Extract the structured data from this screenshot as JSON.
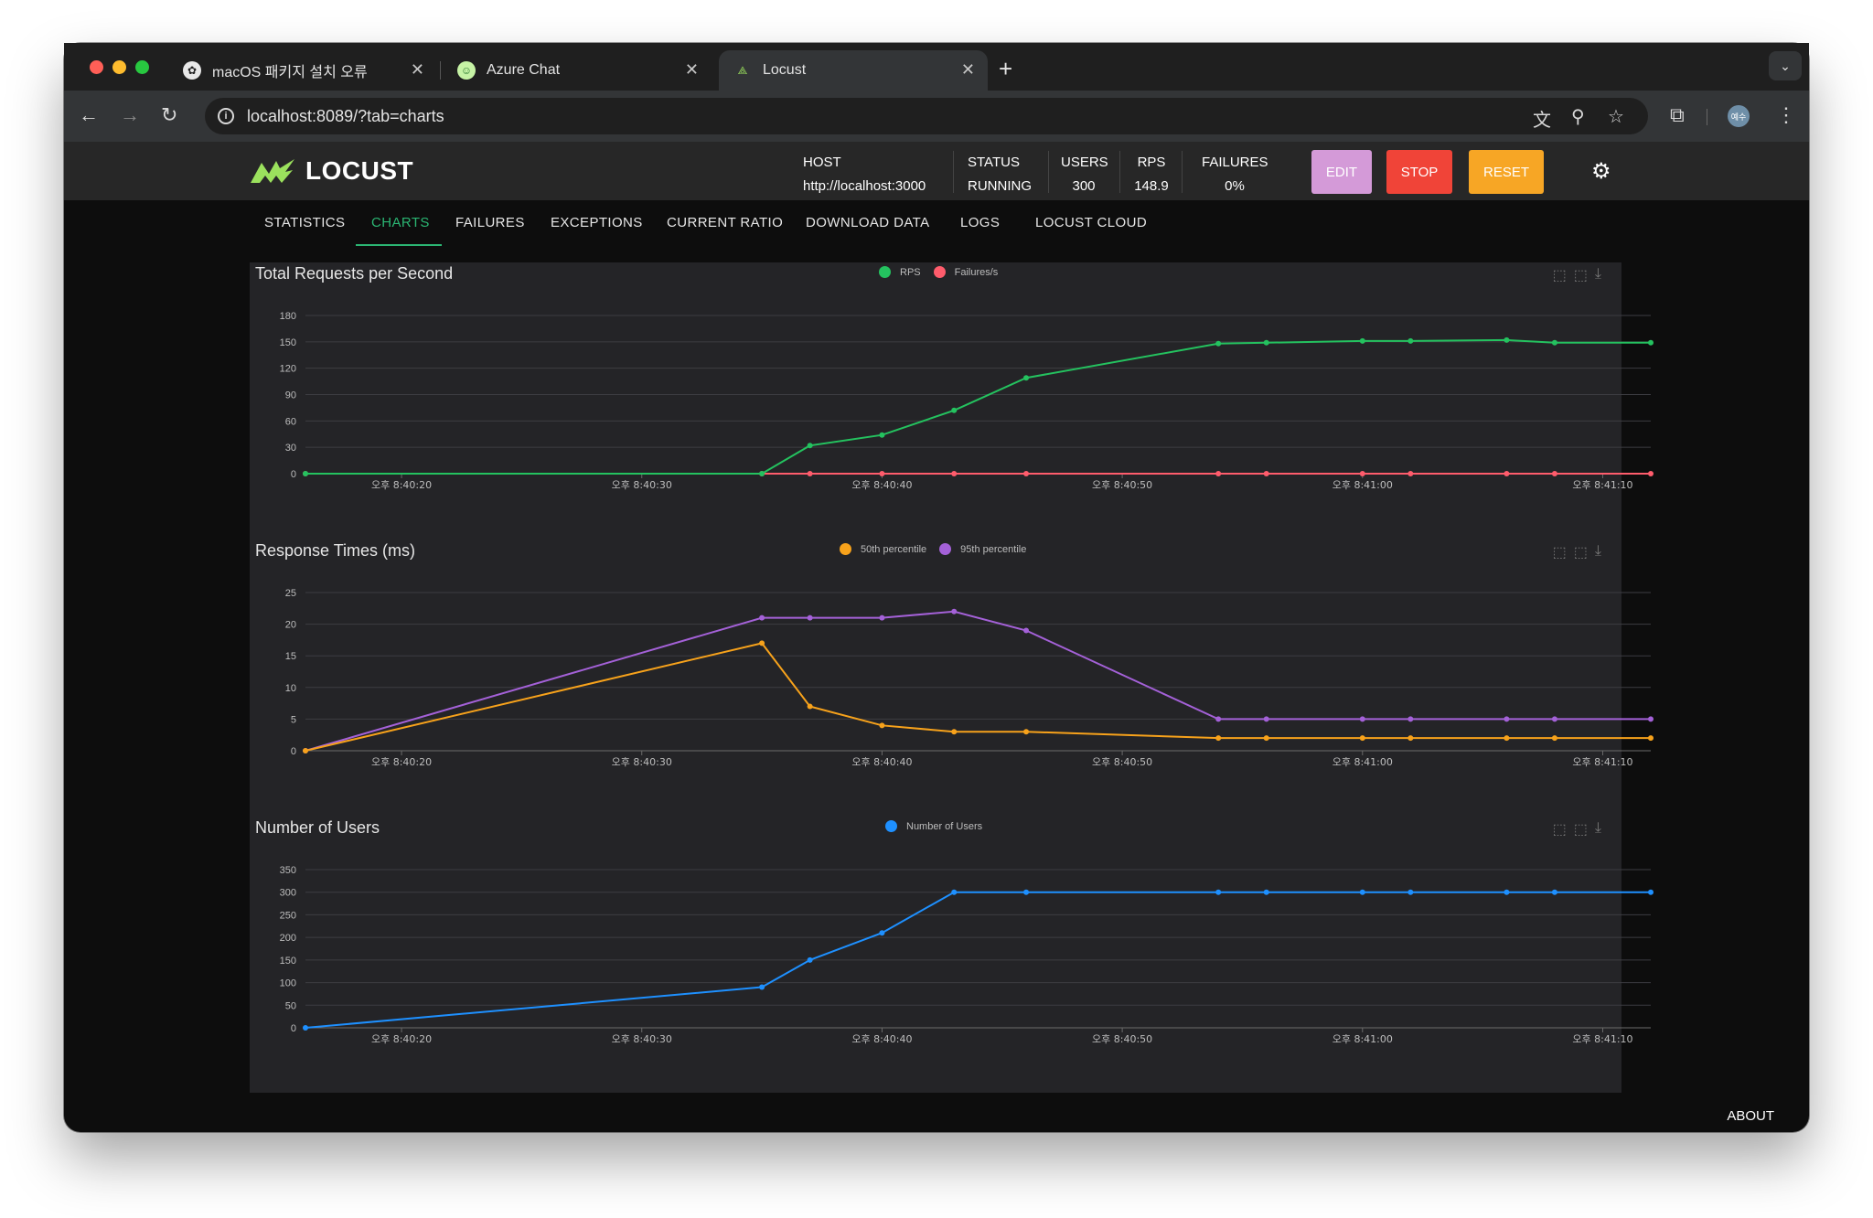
{
  "browser": {
    "tabs": [
      {
        "title": "macOS 패키지 설치 오류"
      },
      {
        "title": "Azure Chat"
      },
      {
        "title": "Locust"
      }
    ],
    "url": "localhost:8089/?tab=charts",
    "profile_initials": "예수"
  },
  "header": {
    "logo_text": "LOCUST",
    "stats": [
      {
        "label": "HOST",
        "value": "http://localhost:3000"
      },
      {
        "label": "STATUS",
        "value": "RUNNING"
      },
      {
        "label": "USERS",
        "value": "300"
      },
      {
        "label": "RPS",
        "value": "148.9"
      },
      {
        "label": "FAILURES",
        "value": "0%"
      }
    ],
    "buttons": {
      "edit": "EDIT",
      "stop": "STOP",
      "reset": "RESET"
    },
    "colors": {
      "edit": "#d49ad8",
      "stop": "#f04438",
      "reset": "#f7a625",
      "accent": "#2bb673"
    }
  },
  "nav": {
    "tabs": [
      "STATISTICS",
      "CHARTS",
      "FAILURES",
      "EXCEPTIONS",
      "CURRENT RATIO",
      "DOWNLOAD DATA",
      "LOGS",
      "LOCUST CLOUD"
    ],
    "active": "CHARTS"
  },
  "footer": {
    "about": "ABOUT"
  },
  "chart_data": [
    {
      "type": "line",
      "title": "Total Requests per Second",
      "x": [
        "오후 8:40:16",
        "오후 8:40:35",
        "오후 8:40:37",
        "오후 8:40:40",
        "오후 8:40:43",
        "오후 8:40:46",
        "오후 8:40:54",
        "오후 8:40:56",
        "오후 8:41:00",
        "오후 8:41:02",
        "오후 8:41:06",
        "오후 8:41:08",
        "오후 8:41:12"
      ],
      "x_ticks": [
        "오후 8:40:20",
        "오후 8:40:30",
        "오후 8:40:40",
        "오후 8:40:50",
        "오후 8:41:00",
        "오후 8:41:10"
      ],
      "series": [
        {
          "name": "RPS",
          "color": "#24c25f",
          "values": [
            0,
            0,
            32,
            44,
            72,
            109,
            148,
            149,
            151,
            151,
            152,
            149,
            149
          ]
        },
        {
          "name": "Failures/s",
          "color": "#ff5c6c",
          "values": [
            0,
            0,
            0,
            0,
            0,
            0,
            0,
            0,
            0,
            0,
            0,
            0,
            0
          ]
        }
      ],
      "ylim": [
        0,
        180
      ],
      "y_ticks": [
        0,
        30,
        60,
        90,
        120,
        150,
        180
      ],
      "grid": true,
      "legend": "top-center"
    },
    {
      "type": "line",
      "title": "Response Times (ms)",
      "x": [
        "오후 8:40:16",
        "오후 8:40:35",
        "오후 8:40:37",
        "오후 8:40:40",
        "오후 8:40:43",
        "오후 8:40:46",
        "오후 8:40:54",
        "오후 8:40:56",
        "오후 8:41:00",
        "오후 8:41:02",
        "오후 8:41:06",
        "오후 8:41:08",
        "오후 8:41:12"
      ],
      "x_ticks": [
        "오후 8:40:20",
        "오후 8:40:30",
        "오후 8:40:40",
        "오후 8:40:50",
        "오후 8:41:00",
        "오후 8:41:10"
      ],
      "series": [
        {
          "name": "50th percentile",
          "color": "#f7a21b",
          "values": [
            0,
            17,
            7,
            4,
            3,
            3,
            2,
            2,
            2,
            2,
            2,
            2,
            2
          ]
        },
        {
          "name": "95th percentile",
          "color": "#a461d8",
          "values": [
            0,
            21,
            21,
            21,
            22,
            19,
            5,
            5,
            5,
            5,
            5,
            5,
            5
          ]
        }
      ],
      "ylim": [
        0,
        25
      ],
      "y_ticks": [
        0,
        5,
        10,
        15,
        20,
        25
      ],
      "grid": true,
      "legend": "top-center"
    },
    {
      "type": "line",
      "title": "Number of Users",
      "x": [
        "오후 8:40:16",
        "오후 8:40:35",
        "오후 8:40:37",
        "오후 8:40:40",
        "오후 8:40:43",
        "오후 8:40:46",
        "오후 8:40:54",
        "오후 8:40:56",
        "오후 8:41:00",
        "오후 8:41:02",
        "오후 8:41:06",
        "오후 8:41:08",
        "오후 8:41:12"
      ],
      "x_ticks": [
        "오후 8:40:20",
        "오후 8:40:30",
        "오후 8:40:40",
        "오후 8:40:50",
        "오후 8:41:00",
        "오후 8:41:10"
      ],
      "series": [
        {
          "name": "Number of Users",
          "color": "#1e90ff",
          "values": [
            0,
            90,
            150,
            210,
            300,
            300,
            300,
            300,
            300,
            300,
            300,
            300,
            300
          ]
        }
      ],
      "ylim": [
        0,
        350
      ],
      "y_ticks": [
        0,
        50,
        100,
        150,
        200,
        250,
        300,
        350
      ],
      "grid": true,
      "legend": "top-center"
    }
  ]
}
